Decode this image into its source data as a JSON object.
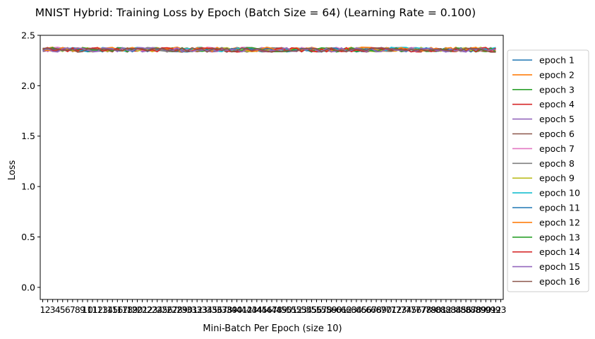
{
  "chart_data": {
    "type": "line",
    "title": "MNIST Hybrid: Training Loss by Epoch (Batch Size = 64) (Learning Rate = 0.100)",
    "xlabel": "Mini-Batch Per Epoch (size 10)",
    "ylabel": "Loss",
    "xlim": [
      0.5,
      93.5
    ],
    "ylim": [
      -0.12,
      2.5
    ],
    "yticks": [
      0.0,
      0.5,
      1.0,
      1.5,
      2.0,
      2.5
    ],
    "ytick_labels": [
      "0.0",
      "0.5",
      "1.0",
      "1.5",
      "2.0",
      "2.5"
    ],
    "xticks": [
      1,
      2,
      3,
      4,
      5,
      6,
      7,
      8,
      9,
      10,
      11,
      12,
      13,
      14,
      15,
      16,
      17,
      18,
      19,
      20,
      21,
      22,
      23,
      24,
      25,
      26,
      27,
      28,
      29,
      30,
      31,
      32,
      33,
      34,
      35,
      36,
      37,
      38,
      39,
      40,
      41,
      42,
      43,
      44,
      45,
      46,
      47,
      48,
      49,
      50,
      51,
      52,
      53,
      54,
      55,
      56,
      57,
      58,
      59,
      60,
      61,
      62,
      63,
      64,
      65,
      66,
      67,
      68,
      69,
      70,
      71,
      72,
      73,
      74,
      75,
      76,
      77,
      78,
      79,
      80,
      81,
      82,
      83,
      84,
      85,
      86,
      87,
      88,
      89,
      90,
      91,
      92,
      93
    ],
    "x_range": [
      1,
      92
    ],
    "legend": "outside-right",
    "grid": false,
    "series": [
      {
        "name": "epoch 1",
        "color": "#1f77b4",
        "mean": 2.357
      },
      {
        "name": "epoch 2",
        "color": "#ff7f0e",
        "mean": 2.36
      },
      {
        "name": "epoch 3",
        "color": "#2ca02c",
        "mean": 2.358
      },
      {
        "name": "epoch 4",
        "color": "#d62728",
        "mean": 2.356
      },
      {
        "name": "epoch 5",
        "color": "#9467bd",
        "mean": 2.357
      },
      {
        "name": "epoch 6",
        "color": "#8c564b",
        "mean": 2.355
      },
      {
        "name": "epoch 7",
        "color": "#e377c2",
        "mean": 2.359
      },
      {
        "name": "epoch 8",
        "color": "#7f7f7f",
        "mean": 2.358
      },
      {
        "name": "epoch 9",
        "color": "#bcbd22",
        "mean": 2.36
      },
      {
        "name": "epoch 10",
        "color": "#17becf",
        "mean": 2.359
      },
      {
        "name": "epoch 11",
        "color": "#1f77b4",
        "mean": 2.356
      },
      {
        "name": "epoch 12",
        "color": "#ff7f0e",
        "mean": 2.361
      },
      {
        "name": "epoch 13",
        "color": "#2ca02c",
        "mean": 2.357
      },
      {
        "name": "epoch 14",
        "color": "#d62728",
        "mean": 2.358
      },
      {
        "name": "epoch 15",
        "color": "#9467bd",
        "mean": 2.356
      },
      {
        "name": "epoch 16",
        "color": "#8c564b",
        "mean": 2.355
      }
    ]
  }
}
